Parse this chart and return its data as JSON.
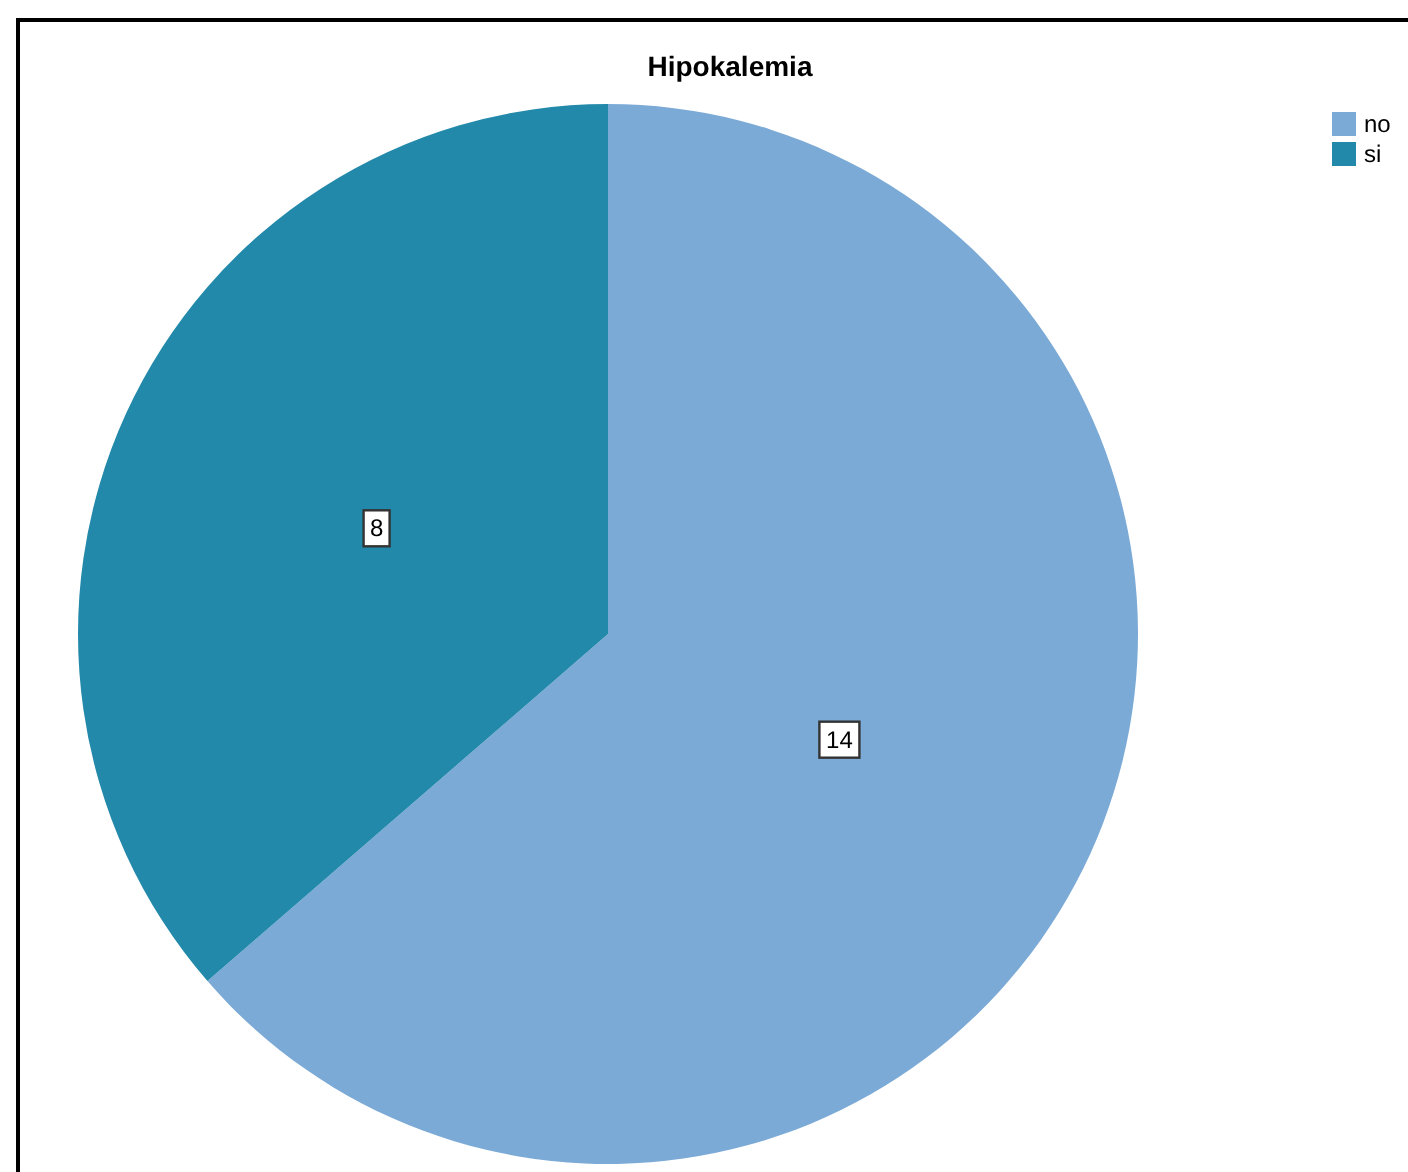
{
  "chart_data": {
    "type": "pie",
    "title": "Hipokalemia",
    "categories": [
      "no",
      "si"
    ],
    "values": [
      14,
      8
    ],
    "colors": [
      "#7baad6",
      "#2389aa"
    ],
    "data_labels": true,
    "legend": "top right"
  }
}
